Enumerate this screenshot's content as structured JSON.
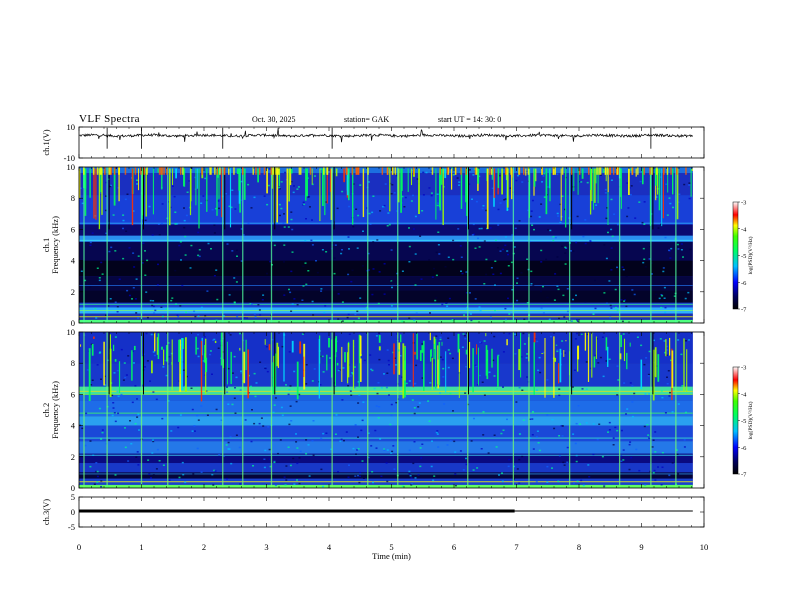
{
  "header": {
    "title": "VLF  Spectra",
    "date": "Oct. 30, 2025",
    "station": "station= GAK",
    "start": "start  UT  =    14: 30: 0"
  },
  "chart_data": [
    {
      "type": "line",
      "id": "ch1-waveform",
      "ylabel": "ch.1(V)",
      "ylim": [
        -10,
        10
      ],
      "yticks": [
        "10",
        "-10"
      ],
      "xlim": [
        0,
        10
      ],
      "x_end": 9.82,
      "baseline": 4.5,
      "grid": false
    },
    {
      "type": "heatmap",
      "id": "ch1-spectrogram",
      "ylabel": "ch.1\nFrequency (kHz)",
      "ylim": [
        0,
        10
      ],
      "yticks": [
        "0",
        "2",
        "4",
        "6",
        "8",
        "10"
      ],
      "xlim": [
        0,
        10
      ],
      "x_end": 9.82,
      "colorbar": {
        "label": "log(PSD)(V²/Hz)",
        "range": [
          -7,
          -3
        ],
        "ticks": [
          "-3",
          "-4",
          "-5",
          "-6",
          "-7"
        ]
      }
    },
    {
      "type": "heatmap",
      "id": "ch2-spectrogram",
      "ylabel": "ch.2\nFrequency (kHz)",
      "ylim": [
        0,
        10
      ],
      "yticks": [
        "0",
        "2",
        "4",
        "6",
        "8",
        "10"
      ],
      "xlim": [
        0,
        10
      ],
      "x_end": 9.82,
      "colorbar": {
        "label": "log(PSD)(V²/Hz)",
        "range": [
          -7,
          -3
        ],
        "ticks": [
          "-3",
          "-4",
          "-5",
          "-6",
          "-7"
        ]
      }
    },
    {
      "type": "line",
      "id": "ch3-signal",
      "ylabel": "ch.3(V)",
      "ylim": [
        -5,
        5
      ],
      "yticks": [
        "5",
        "0",
        "-5"
      ],
      "xlim": [
        0,
        10
      ],
      "x": [
        0,
        6.97,
        6.97,
        9.82
      ],
      "y": [
        0,
        0,
        0,
        0
      ],
      "pulse_until": 6.97,
      "xlabel": "Time  (min)",
      "xticks": [
        "0",
        "1",
        "2",
        "3",
        "4",
        "5",
        "6",
        "7",
        "8",
        "9",
        "10"
      ]
    }
  ],
  "colors": {
    "spectrum": [
      "#000000",
      "#000050",
      "#0000ff",
      "#00c0ff",
      "#00ff80",
      "#00ff00",
      "#ffff00",
      "#ff0000",
      "#ffffff"
    ],
    "axis": "#000000"
  }
}
